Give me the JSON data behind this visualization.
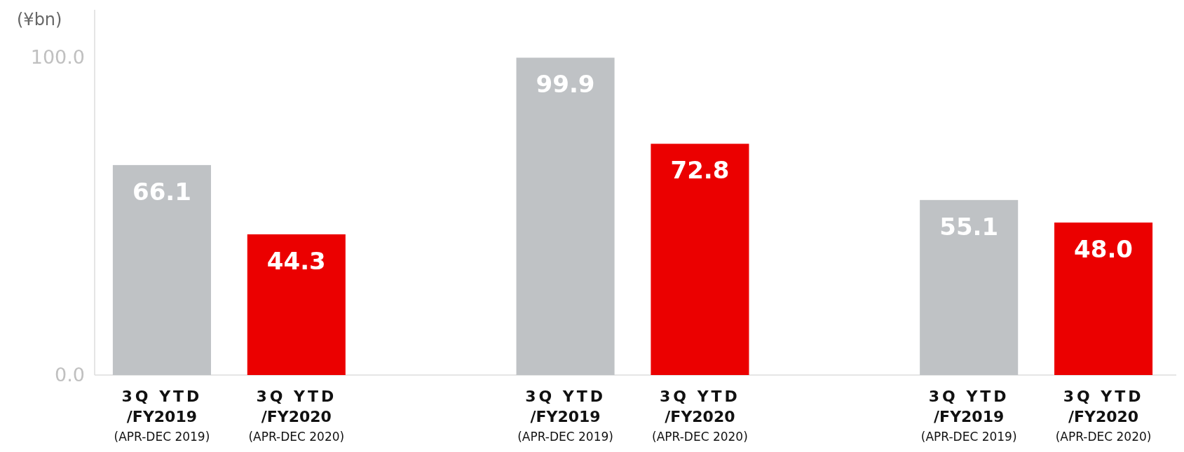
{
  "chart_data": {
    "type": "bar",
    "ylabel": "(¥bn)",
    "categories": [
      "3Q YTD\n/FY2019\n(APR-DEC 2019)",
      "3Q YTD\n/FY2020\n(APR-DEC 2020)",
      null,
      "3Q YTD\n/FY2019\n(APR-DEC 2019)",
      "3Q YTD\n/FY2020\n(APR-DEC 2020)",
      null,
      "3Q YTD\n/FY2019\n(APR-DEC 2019)",
      "3Q YTD\n/FY2020\n(APR-DEC 2020)"
    ],
    "values": [
      66.1,
      44.3,
      null,
      99.9,
      72.8,
      null,
      55.1,
      48.0
    ],
    "colors": [
      "#bfc2c5",
      "#eb0000",
      null,
      "#bfc2c5",
      "#eb0000",
      null,
      "#bfc2c5",
      "#eb0000"
    ],
    "value_labels": [
      "66.1",
      "44.3",
      null,
      "99.9",
      "72.8",
      null,
      "55.1",
      "48.0"
    ],
    "ylim": [
      0,
      100
    ],
    "yticks": [
      {
        "value": 0,
        "label": "0.0"
      },
      {
        "value": 100,
        "label": "100.0"
      }
    ],
    "grid": false
  }
}
